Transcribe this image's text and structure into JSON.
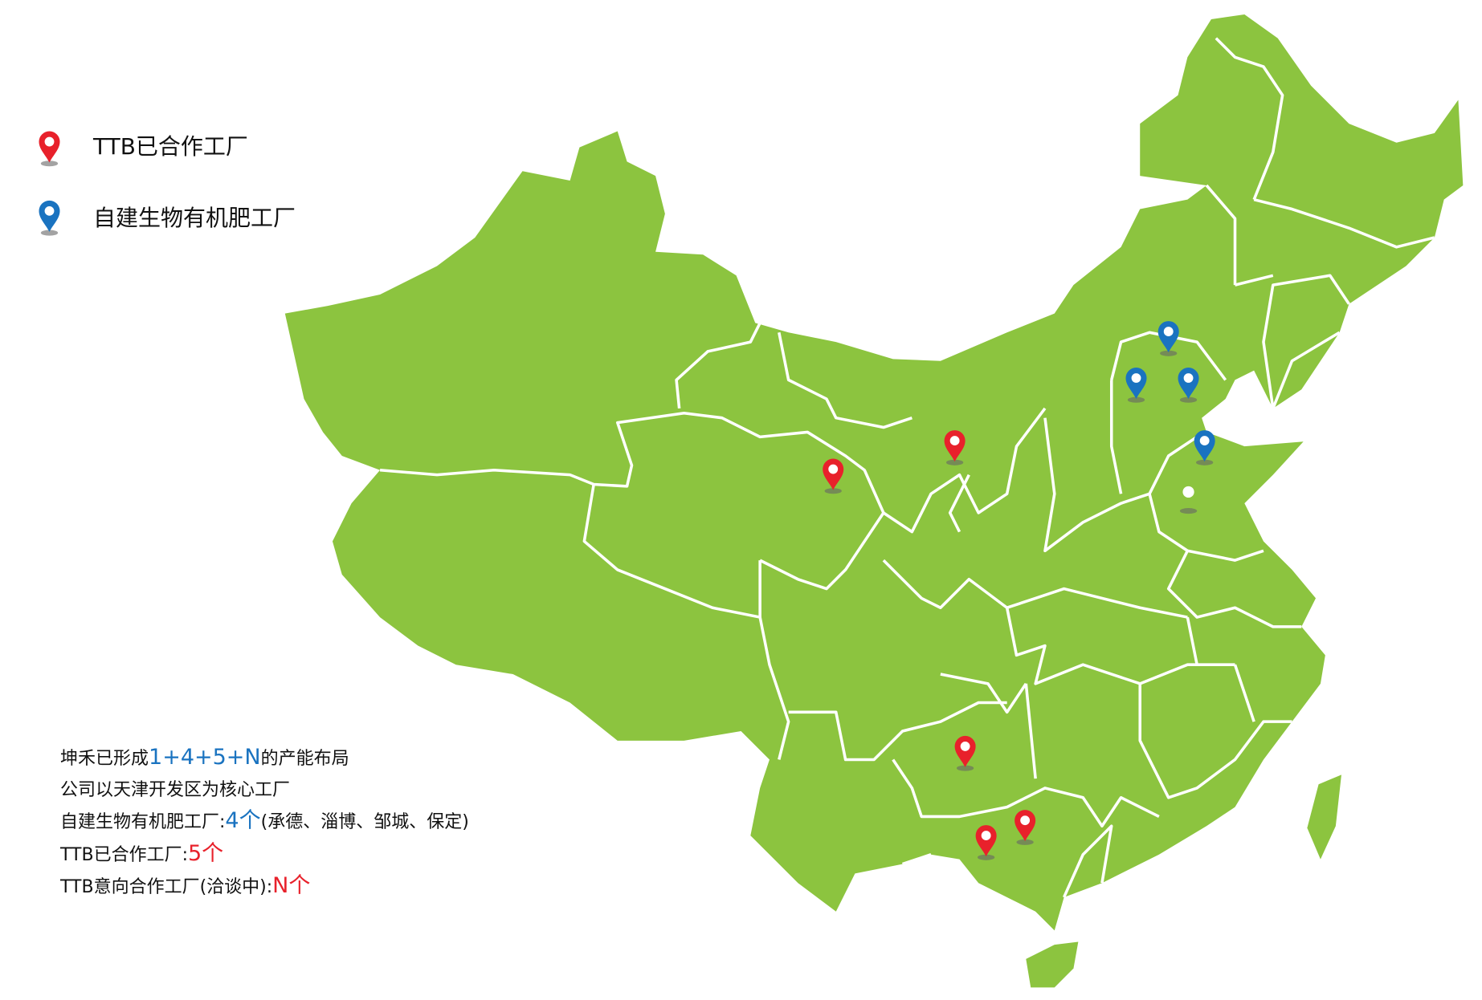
{
  "colors": {
    "land": "#8cc43f",
    "border": "#ffffff",
    "partner_pin": "#e8212b",
    "own_pin": "#1a73c0",
    "highlight_blue": "#1a73c0",
    "highlight_red": "#e8212b"
  },
  "legend": [
    {
      "label": "TTB已合作工厂",
      "icon": "map-pin-icon",
      "color": "#e8212b"
    },
    {
      "label": "自建生物有机肥工厂",
      "icon": "map-pin-icon",
      "color": "#1a73c0"
    }
  ],
  "info": {
    "line1_pre": "坤禾已形成",
    "line1_highlight": "1+4+5+N",
    "line1_post": "的产能布局",
    "line2": "公司以天津开发区为核心工厂",
    "line3_pre": "自建生物有机肥工厂:",
    "line3_highlight": "4个",
    "line3_post": "(承德、淄博、邹城、保定)",
    "line4_pre": "TTB已合作工厂:",
    "line4_highlight": "5个",
    "line5_pre": "TTB意向合作工厂(洽谈中):",
    "line5_highlight": "N个"
  },
  "markers": {
    "partner_factories": 5,
    "own_factories": 4
  }
}
